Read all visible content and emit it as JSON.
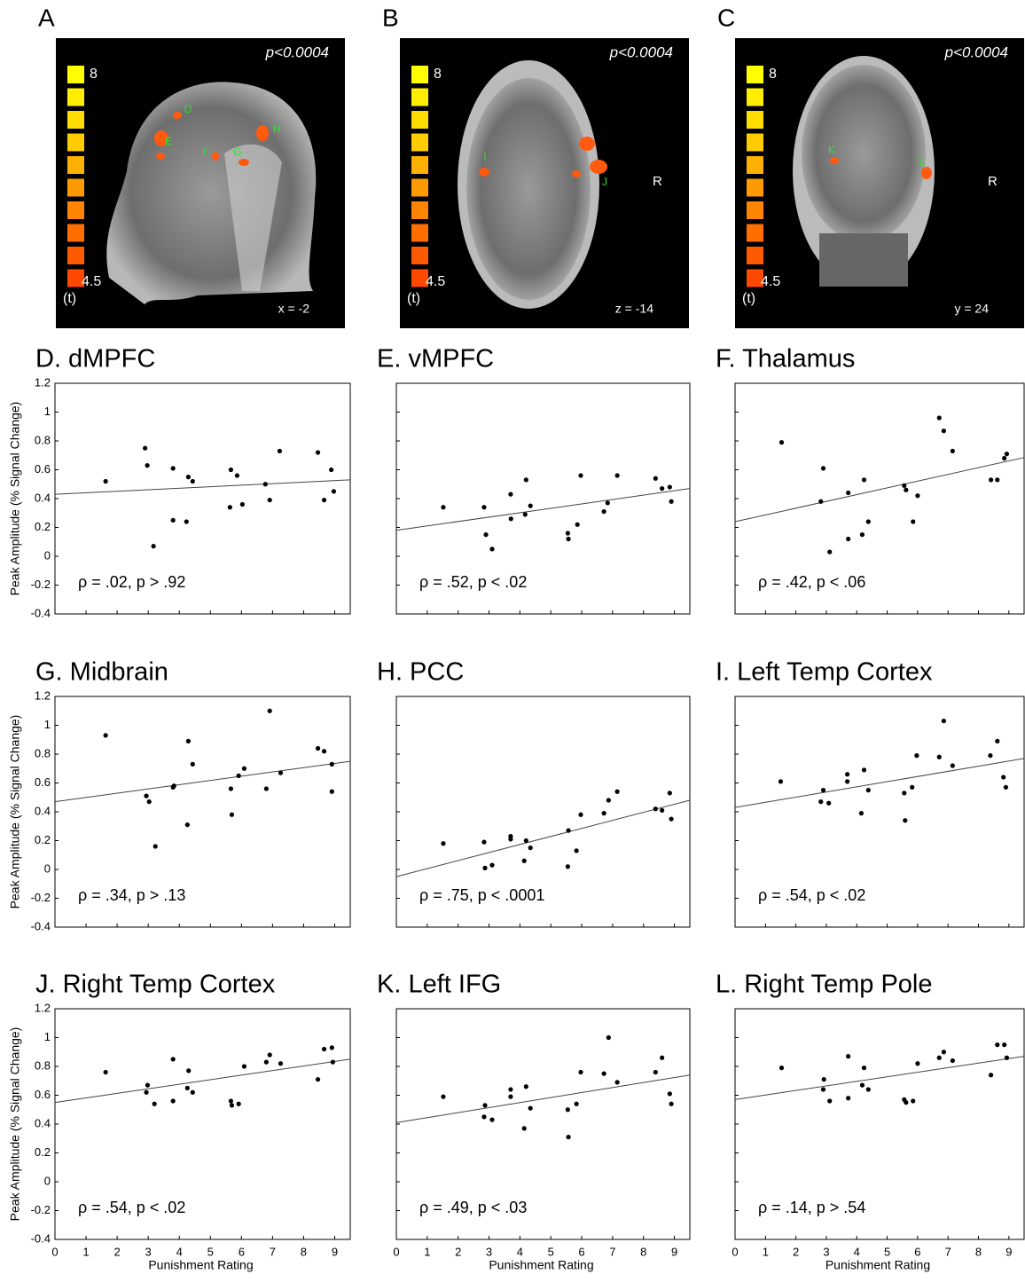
{
  "images": [
    {
      "label": "A",
      "threshold": "p<0.0004",
      "scale_max": "8",
      "scale_min": "4.5",
      "scale_unit": "(t)",
      "slice": "x = -2",
      "regions": [
        "D",
        "E",
        "F",
        "G",
        "H"
      ]
    },
    {
      "label": "B",
      "threshold": "p<0.0004",
      "scale_max": "8",
      "scale_min": "4.5",
      "scale_unit": "(t)",
      "slice": "z = -14",
      "side": "R",
      "regions": [
        "I",
        "J"
      ]
    },
    {
      "label": "C",
      "threshold": "p<0.0004",
      "scale_max": "8",
      "scale_min": "4.5",
      "scale_unit": "(t)",
      "slice": "y = 24",
      "side": "R",
      "regions": [
        "K",
        "L"
      ]
    }
  ],
  "chart_data": [
    {
      "type": "scatter",
      "title": "D. dMPFC",
      "annotation": "ρ = .02, p > .92",
      "ylabel": "Peak Amplitude (% Signal Change)",
      "x": [
        1.63,
        2.9,
        2.97,
        3.17,
        3.8,
        3.8,
        4.23,
        4.29,
        4.43,
        5.66,
        5.63,
        5.86,
        6.03,
        6.77,
        6.91,
        7.23,
        8.46,
        8.66,
        8.89,
        8.97
      ],
      "values": [
        0.52,
        0.75,
        0.63,
        0.07,
        0.61,
        0.25,
        0.24,
        0.55,
        0.52,
        0.6,
        0.34,
        0.56,
        0.36,
        0.5,
        0.39,
        0.73,
        0.72,
        0.39,
        0.6,
        0.45
      ],
      "fit": {
        "x": [
          0,
          9.5
        ],
        "y": [
          0.43,
          0.53
        ]
      },
      "color": "#000000",
      "xlim": [
        0,
        9.5
      ],
      "ylim": [
        -0.4,
        1.2
      ],
      "xticks": [
        0,
        1,
        2,
        3,
        4,
        5,
        6,
        7,
        8,
        9
      ],
      "yticks": [
        -0.4,
        -0.2,
        0,
        0.2,
        0.4,
        0.6,
        0.8,
        1,
        1.2
      ],
      "tick_labels": {
        "x": false,
        "y": true
      }
    },
    {
      "type": "scatter",
      "title": "E. vMPFC",
      "annotation": "ρ = .52, p < .02",
      "x": [
        1.52,
        2.84,
        2.9,
        3.1,
        3.7,
        3.71,
        4.17,
        4.2,
        4.34,
        5.55,
        5.57,
        5.86,
        5.97,
        6.72,
        6.84,
        7.15,
        8.39,
        8.6,
        8.85,
        8.9
      ],
      "values": [
        0.34,
        0.34,
        0.15,
        0.05,
        0.43,
        0.26,
        0.29,
        0.53,
        0.35,
        0.16,
        0.12,
        0.22,
        0.56,
        0.31,
        0.37,
        0.56,
        0.54,
        0.47,
        0.48,
        0.38
      ],
      "fit": {
        "x": [
          0,
          9.5
        ],
        "y": [
          0.18,
          0.47
        ]
      },
      "color": "#000000",
      "xlim": [
        0,
        9.5
      ],
      "ylim": [
        -0.4,
        1.2
      ],
      "xticks": [
        0,
        1,
        2,
        3,
        4,
        5,
        6,
        7,
        8,
        9
      ],
      "yticks": [
        -0.4,
        -0.2,
        0,
        0.2,
        0.4,
        0.6,
        0.8,
        1,
        1.2
      ],
      "tick_labels": {
        "x": false,
        "y": false
      }
    },
    {
      "type": "scatter",
      "title": "F. Thalamus",
      "annotation": "ρ = .42, p < .06",
      "x": [
        1.53,
        2.9,
        2.82,
        3.11,
        3.72,
        3.72,
        4.18,
        4.24,
        4.38,
        5.56,
        5.62,
        6.0,
        5.85,
        6.71,
        6.86,
        7.15,
        8.41,
        8.62,
        8.85,
        8.93
      ],
      "values": [
        0.79,
        0.61,
        0.38,
        0.03,
        0.44,
        0.12,
        0.15,
        0.53,
        0.24,
        0.49,
        0.46,
        0.42,
        0.24,
        0.96,
        0.87,
        0.73,
        0.53,
        0.53,
        0.68,
        0.71
      ],
      "fit": {
        "x": [
          0,
          9.5
        ],
        "y": [
          0.24,
          0.685
        ]
      },
      "color": "#000000",
      "xlim": [
        0,
        9.5
      ],
      "ylim": [
        -0.4,
        1.2
      ],
      "xticks": [
        0,
        1,
        2,
        3,
        4,
        5,
        6,
        7,
        8,
        9
      ],
      "yticks": [
        -0.4,
        -0.2,
        0,
        0.2,
        0.4,
        0.6,
        0.8,
        1,
        1.2
      ],
      "tick_labels": {
        "x": false,
        "y": false
      }
    },
    {
      "type": "scatter",
      "title": "G. Midbrain",
      "annotation": "ρ = .34, p > .13",
      "ylabel": "Peak Amplitude (% Signal Change)",
      "x": [
        1.63,
        2.94,
        3.03,
        3.23,
        3.8,
        3.83,
        4.26,
        4.29,
        4.43,
        5.66,
        5.69,
        5.91,
        6.09,
        6.8,
        6.91,
        7.26,
        8.46,
        8.66,
        8.91,
        8.91
      ],
      "values": [
        0.93,
        0.51,
        0.47,
        0.16,
        0.57,
        0.58,
        0.31,
        0.89,
        0.73,
        0.56,
        0.38,
        0.65,
        0.7,
        0.56,
        1.1,
        0.67,
        0.84,
        0.82,
        0.73,
        0.54
      ],
      "fit": {
        "x": [
          0,
          9.5
        ],
        "y": [
          0.47,
          0.75
        ]
      },
      "color": "#000000",
      "xlim": [
        0,
        9.5
      ],
      "ylim": [
        -0.4,
        1.2
      ],
      "xticks": [
        0,
        1,
        2,
        3,
        4,
        5,
        6,
        7,
        8,
        9
      ],
      "yticks": [
        -0.4,
        -0.2,
        0,
        0.2,
        0.4,
        0.6,
        0.8,
        1,
        1.2
      ],
      "tick_labels": {
        "x": false,
        "y": true
      }
    },
    {
      "type": "scatter",
      "title": "H. PCC",
      "annotation": "ρ = .75, p < .0001",
      "x": [
        1.52,
        2.84,
        2.87,
        3.1,
        3.7,
        3.7,
        4.14,
        4.2,
        4.34,
        5.55,
        5.57,
        5.83,
        5.97,
        6.72,
        6.87,
        7.15,
        8.39,
        8.6,
        8.85,
        8.9
      ],
      "values": [
        0.18,
        0.19,
        0.01,
        0.03,
        0.23,
        0.21,
        0.06,
        0.2,
        0.15,
        0.02,
        0.27,
        0.13,
        0.38,
        0.39,
        0.48,
        0.54,
        0.42,
        0.41,
        0.53,
        0.35
      ],
      "fit": {
        "x": [
          0,
          9.5
        ],
        "y": [
          -0.05,
          0.48
        ]
      },
      "color": "#000000",
      "xlim": [
        0,
        9.5
      ],
      "ylim": [
        -0.4,
        1.2
      ],
      "xticks": [
        0,
        1,
        2,
        3,
        4,
        5,
        6,
        7,
        8,
        9
      ],
      "yticks": [
        -0.4,
        -0.2,
        0,
        0.2,
        0.4,
        0.6,
        0.8,
        1,
        1.2
      ],
      "tick_labels": {
        "x": false,
        "y": false
      }
    },
    {
      "type": "scatter",
      "title": "I. Left Temp Cortex",
      "annotation": "ρ = .54, p < .02",
      "x": [
        1.5,
        2.9,
        2.82,
        3.08,
        3.69,
        3.69,
        4.15,
        4.24,
        4.38,
        5.56,
        5.59,
        5.82,
        5.97,
        6.71,
        6.86,
        7.15,
        8.39,
        8.62,
        8.82,
        8.9
      ],
      "values": [
        0.61,
        0.55,
        0.47,
        0.46,
        0.66,
        0.61,
        0.39,
        0.69,
        0.55,
        0.53,
        0.34,
        0.57,
        0.79,
        0.78,
        1.03,
        0.72,
        0.79,
        0.89,
        0.64,
        0.57
      ],
      "fit": {
        "x": [
          0,
          9.5
        ],
        "y": [
          0.43,
          0.77
        ]
      },
      "color": "#000000",
      "xlim": [
        0,
        9.5
      ],
      "ylim": [
        -0.4,
        1.2
      ],
      "xticks": [
        0,
        1,
        2,
        3,
        4,
        5,
        6,
        7,
        8,
        9
      ],
      "yticks": [
        -0.4,
        -0.2,
        0,
        0.2,
        0.4,
        0.6,
        0.8,
        1,
        1.2
      ],
      "tick_labels": {
        "x": false,
        "y": false
      }
    },
    {
      "type": "scatter",
      "title": "J. Right Temp Cortex",
      "annotation": "ρ = .54, p < .02",
      "ylabel": "Peak Amplitude (% Signal Change)",
      "xlabel": "Punishment Rating",
      "x": [
        1.63,
        2.94,
        2.98,
        3.2,
        3.8,
        3.8,
        4.26,
        4.3,
        4.43,
        5.66,
        5.69,
        5.91,
        6.09,
        6.8,
        6.91,
        7.26,
        8.46,
        8.66,
        8.91,
        8.94
      ],
      "values": [
        0.76,
        0.62,
        0.67,
        0.54,
        0.85,
        0.56,
        0.65,
        0.77,
        0.62,
        0.56,
        0.53,
        0.54,
        0.8,
        0.83,
        0.88,
        0.82,
        0.71,
        0.92,
        0.93,
        0.83
      ],
      "fit": {
        "x": [
          0,
          9.5
        ],
        "y": [
          0.55,
          0.85
        ]
      },
      "color": "#000000",
      "xlim": [
        0,
        9.5
      ],
      "ylim": [
        -0.4,
        1.2
      ],
      "xticks": [
        0,
        1,
        2,
        3,
        4,
        5,
        6,
        7,
        8,
        9
      ],
      "yticks": [
        -0.4,
        -0.2,
        0,
        0.2,
        0.4,
        0.6,
        0.8,
        1,
        1.2
      ],
      "tick_labels": {
        "x": true,
        "y": true
      }
    },
    {
      "type": "scatter",
      "title": "K. Left IFG",
      "annotation": "ρ = .49, p < .03",
      "xlabel": "Punishment Rating",
      "x": [
        1.52,
        2.84,
        2.87,
        3.1,
        3.7,
        3.7,
        4.14,
        4.2,
        4.34,
        5.55,
        5.57,
        5.83,
        5.97,
        6.72,
        6.87,
        7.15,
        8.39,
        8.6,
        8.85,
        8.9
      ],
      "values": [
        0.59,
        0.45,
        0.53,
        0.43,
        0.64,
        0.59,
        0.37,
        0.66,
        0.51,
        0.5,
        0.31,
        0.54,
        0.76,
        0.75,
        1.0,
        0.69,
        0.76,
        0.86,
        0.61,
        0.54
      ],
      "fit": {
        "x": [
          0,
          9.5
        ],
        "y": [
          0.41,
          0.74
        ]
      },
      "color": "#000000",
      "xlim": [
        0,
        9.5
      ],
      "ylim": [
        -0.4,
        1.2
      ],
      "xticks": [
        0,
        1,
        2,
        3,
        4,
        5,
        6,
        7,
        8,
        9
      ],
      "yticks": [
        -0.4,
        -0.2,
        0,
        0.2,
        0.4,
        0.6,
        0.8,
        1,
        1.2
      ],
      "tick_labels": {
        "x": true,
        "y": false
      }
    },
    {
      "type": "scatter",
      "title": "L. Right Temp Pole",
      "annotation": "ρ = .14, p > .54",
      "xlabel": "Punishment Rating",
      "x": [
        1.53,
        2.9,
        2.92,
        3.11,
        3.72,
        3.72,
        4.18,
        4.24,
        4.38,
        5.56,
        5.62,
        5.85,
        6.0,
        6.71,
        6.86,
        7.15,
        8.41,
        8.62,
        8.85,
        8.93
      ],
      "values": [
        0.79,
        0.64,
        0.71,
        0.56,
        0.87,
        0.58,
        0.67,
        0.79,
        0.64,
        0.57,
        0.55,
        0.56,
        0.82,
        0.86,
        0.9,
        0.84,
        0.74,
        0.95,
        0.95,
        0.86
      ],
      "fit": {
        "x": [
          0,
          9.5
        ],
        "y": [
          0.57,
          0.87
        ]
      },
      "color": "#000000",
      "xlim": [
        0,
        9.5
      ],
      "ylim": [
        -0.4,
        1.2
      ],
      "xticks": [
        0,
        1,
        2,
        3,
        4,
        5,
        6,
        7,
        8,
        9
      ],
      "yticks": [
        -0.4,
        -0.2,
        0,
        0.2,
        0.4,
        0.6,
        0.8,
        1,
        1.2
      ],
      "tick_labels": {
        "x": true,
        "y": false
      }
    }
  ]
}
